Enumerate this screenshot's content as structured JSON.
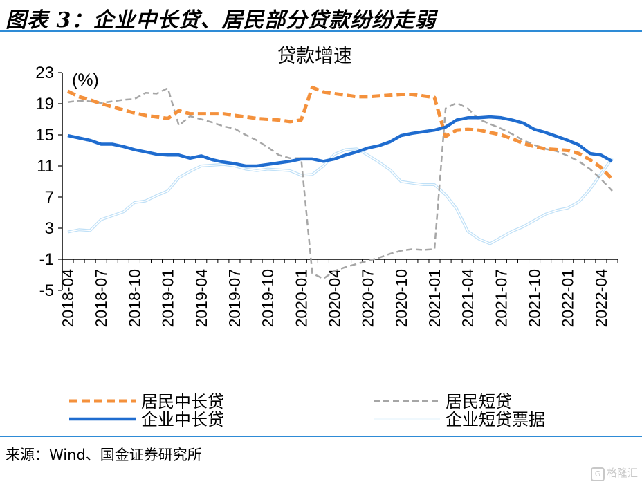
{
  "figure_title": "图表 3：企业中长贷、居民部分贷款纷纷走弱",
  "source": "来源：Wind、国金证券研究所",
  "watermark": "格隆汇",
  "colors": {
    "rule": "#2e8bd6",
    "axis": "#000000"
  },
  "chart_data": {
    "type": "line",
    "title": "贷款增速",
    "ylabel": "(%)",
    "ylim": [
      -5,
      23
    ],
    "yticks": [
      -5,
      -1,
      3,
      7,
      11,
      15,
      19,
      23
    ],
    "xticks": [
      "2018-04",
      "2018-07",
      "2018-10",
      "2019-01",
      "2019-04",
      "2019-07",
      "2019-10",
      "2020-01",
      "2020-04",
      "2020-07",
      "2020-10",
      "2021-01",
      "2021-04",
      "2021-07",
      "2021-10",
      "2022-01",
      "2022-04"
    ],
    "x": [
      "2018-04",
      "2018-05",
      "2018-06",
      "2018-07",
      "2018-08",
      "2018-09",
      "2018-10",
      "2018-11",
      "2018-12",
      "2019-01",
      "2019-02",
      "2019-03",
      "2019-04",
      "2019-05",
      "2019-06",
      "2019-07",
      "2019-08",
      "2019-09",
      "2019-10",
      "2019-11",
      "2019-12",
      "2020-01",
      "2020-02",
      "2020-03",
      "2020-04",
      "2020-05",
      "2020-06",
      "2020-07",
      "2020-08",
      "2020-09",
      "2020-10",
      "2020-11",
      "2020-12",
      "2021-01",
      "2021-02",
      "2021-03",
      "2021-04",
      "2021-05",
      "2021-06",
      "2021-07",
      "2021-08",
      "2021-09",
      "2021-10",
      "2021-11",
      "2021-12",
      "2022-01",
      "2022-02",
      "2022-03",
      "2022-04",
      "2022-05"
    ],
    "legend_position": "bottom",
    "series": [
      {
        "name": "居民中长贷",
        "color": "#f4913c",
        "style": "dashed-thick",
        "values": [
          20.6,
          19.9,
          19.5,
          19.0,
          18.6,
          18.2,
          17.8,
          17.5,
          17.3,
          17.1,
          18.1,
          17.7,
          17.7,
          17.7,
          17.7,
          17.5,
          17.3,
          17.1,
          17.0,
          16.9,
          16.7,
          16.9,
          21.1,
          20.5,
          20.3,
          20.1,
          19.9,
          19.9,
          20.0,
          20.1,
          20.2,
          20.2,
          20.0,
          19.8,
          14.8,
          15.6,
          15.7,
          15.6,
          15.3,
          15.0,
          14.5,
          13.9,
          13.5,
          13.2,
          13.1,
          13.0,
          12.6,
          11.8,
          10.8,
          9.3
        ]
      },
      {
        "name": "居民短贷",
        "color": "#a6a6a6",
        "style": "dashed",
        "values": [
          19.2,
          19.4,
          19.3,
          19.1,
          19.3,
          19.5,
          19.6,
          20.4,
          20.3,
          21.0,
          16.2,
          17.4,
          17.0,
          16.6,
          16.1,
          15.8,
          15.0,
          14.3,
          13.4,
          12.4,
          12.0,
          12.0,
          -2.8,
          -3.5,
          -2.5,
          -2.0,
          -1.6,
          -1.2,
          -0.8,
          -0.3,
          0.1,
          0.3,
          0.2,
          0.3,
          18.4,
          19.1,
          18.4,
          17.0,
          16.4,
          15.8,
          15.1,
          14.3,
          13.7,
          13.2,
          12.9,
          12.3,
          11.6,
          10.6,
          9.3,
          7.8
        ]
      },
      {
        "name": "企业中长贷",
        "color": "#1f6ccf",
        "style": "solid-thick",
        "values": [
          14.9,
          14.6,
          14.3,
          13.8,
          13.8,
          13.5,
          13.1,
          12.8,
          12.5,
          12.4,
          12.4,
          12.0,
          12.3,
          11.8,
          11.5,
          11.3,
          11.0,
          11.0,
          11.2,
          11.4,
          11.6,
          11.9,
          11.9,
          11.6,
          11.9,
          12.4,
          12.8,
          13.3,
          13.6,
          14.1,
          14.9,
          15.2,
          15.4,
          15.6,
          16.0,
          16.9,
          17.2,
          17.2,
          17.3,
          17.2,
          16.9,
          16.5,
          15.7,
          15.3,
          14.8,
          14.3,
          13.7,
          12.6,
          12.4,
          11.6
        ]
      },
      {
        "name": "企业短贷票据",
        "color": "#bfe0f7",
        "style": "double",
        "values": [
          2.5,
          2.8,
          2.7,
          4.1,
          4.6,
          5.1,
          6.3,
          6.5,
          7.2,
          7.8,
          9.5,
          10.3,
          11.0,
          11.1,
          11.2,
          11.0,
          10.6,
          10.4,
          10.6,
          10.5,
          10.4,
          9.8,
          9.9,
          11.0,
          12.5,
          13.1,
          13.2,
          12.4,
          11.5,
          10.5,
          9.0,
          8.8,
          8.6,
          8.6,
          7.3,
          5.5,
          2.6,
          1.6,
          1.0,
          1.8,
          2.6,
          3.2,
          4.0,
          4.8,
          5.3,
          5.6,
          6.4,
          8.0,
          10.0,
          12.0
        ]
      }
    ]
  }
}
